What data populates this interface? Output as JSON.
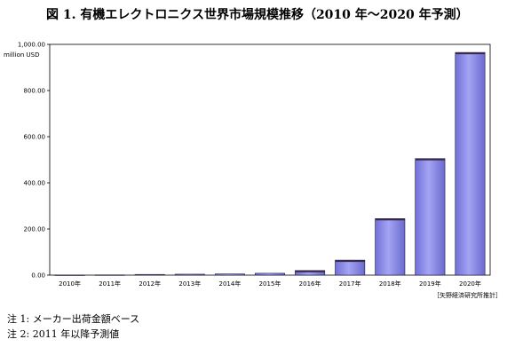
{
  "title": "図 1. 有機エレクトロニクス世界市場規模推移（2010 年～2020 年予測）",
  "source": "［矢野経済研究所推計］",
  "notes": [
    "注 1: メーカー出荷金額ベース",
    "注 2: 2011 年以降予測値"
  ],
  "chart_data": {
    "type": "bar",
    "title": "図 1. 有機エレクトロニクス世界市場規模推移（2010 年～2020 年予測）",
    "xlabel": "",
    "ylabel": "million USD",
    "categories": [
      "2010年",
      "2011年",
      "2012年",
      "2013年",
      "2014年",
      "2015年",
      "2016年",
      "2017年",
      "2018年",
      "2019年",
      "2020年"
    ],
    "values": [
      0.5,
      1,
      3,
      4,
      5,
      8,
      20,
      65,
      245,
      505,
      965
    ],
    "ylim": [
      0,
      1000
    ],
    "yticks": [
      "0.00",
      "200.00",
      "400.00",
      "600.00",
      "800.00",
      "1,000.00"
    ],
    "grid": false,
    "bar_color": "#8f8fe8"
  }
}
